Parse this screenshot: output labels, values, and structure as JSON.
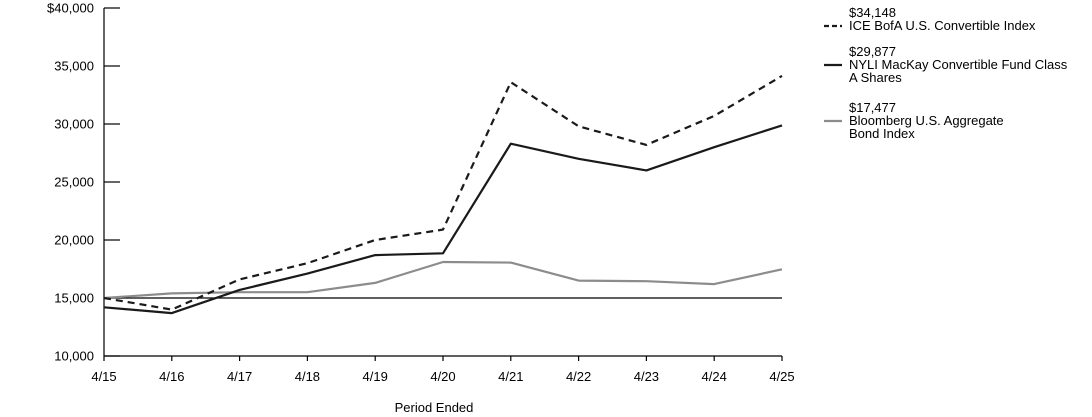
{
  "chart_data": {
    "type": "line",
    "xlabel": "Period Ended",
    "ylabel": "",
    "categories": [
      "4/15",
      "4/16",
      "4/17",
      "4/18",
      "4/19",
      "4/20",
      "4/21",
      "4/22",
      "4/23",
      "4/24",
      "4/25"
    ],
    "ylim": [
      10000,
      40000
    ],
    "yticks": [
      10000,
      15000,
      20000,
      25000,
      30000,
      35000,
      40000
    ],
    "ytick_labels": [
      "10,000",
      "15,000",
      "20,000",
      "25,000",
      "30,000",
      "35,000",
      "$40,000"
    ],
    "reference_line": 15000,
    "legend_position": "right",
    "series": [
      {
        "name": "ICE BofA U.S. Convertible Index",
        "end_label": "$34,148",
        "style": "dashed",
        "color": "#1a1a1a",
        "values": [
          15000,
          14000,
          16600,
          18000,
          20000,
          20900,
          33600,
          29800,
          28200,
          30700,
          34148
        ]
      },
      {
        "name": "NYLI MacKay Convertible Fund Class A Shares",
        "end_label": "$29,877",
        "style": "solid",
        "color": "#1a1a1a",
        "values": [
          14200,
          13700,
          15700,
          17100,
          18700,
          18850,
          28300,
          27000,
          26000,
          28000,
          29877
        ]
      },
      {
        "name": "Bloomberg U.S. Aggregate Bond Index",
        "end_label": "$17,477",
        "style": "solid",
        "color": "#8c8c8c",
        "values": [
          15000,
          15400,
          15500,
          15500,
          16300,
          18100,
          18050,
          16500,
          16450,
          16200,
          17477
        ]
      }
    ],
    "legend_lines": [
      [
        "ICE BofA U.S. Convertible Index"
      ],
      [
        "NYLI MacKay Convertible Fund Class",
        "A Shares"
      ],
      [
        "Bloomberg U.S. Aggregate",
        "Bond Index"
      ]
    ]
  }
}
